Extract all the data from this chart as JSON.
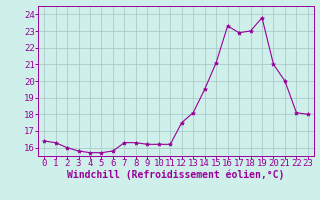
{
  "x": [
    0,
    1,
    2,
    3,
    4,
    5,
    6,
    7,
    8,
    9,
    10,
    11,
    12,
    13,
    14,
    15,
    16,
    17,
    18,
    19,
    20,
    21,
    22,
    23
  ],
  "y": [
    16.4,
    16.3,
    16.0,
    15.8,
    15.7,
    15.7,
    15.8,
    16.3,
    16.3,
    16.2,
    16.2,
    16.2,
    17.5,
    18.1,
    19.5,
    21.1,
    23.3,
    22.9,
    23.0,
    23.8,
    21.0,
    20.0,
    18.1,
    18.0
  ],
  "line_color": "#990099",
  "marker": "*",
  "marker_size": 3,
  "bg_color": "#cff0ea",
  "grid_color": "#aacccc",
  "xlabel": "Windchill (Refroidissement éolien,°C)",
  "ylim": [
    15.5,
    24.5
  ],
  "yticks": [
    16,
    17,
    18,
    19,
    20,
    21,
    22,
    23,
    24
  ],
  "xticks": [
    0,
    1,
    2,
    3,
    4,
    5,
    6,
    7,
    8,
    9,
    10,
    11,
    12,
    13,
    14,
    15,
    16,
    17,
    18,
    19,
    20,
    21,
    22,
    23
  ],
  "axis_label_color": "#990099",
  "tick_color": "#990099",
  "font_size_xlabel": 7,
  "font_size_ticks": 6.5
}
